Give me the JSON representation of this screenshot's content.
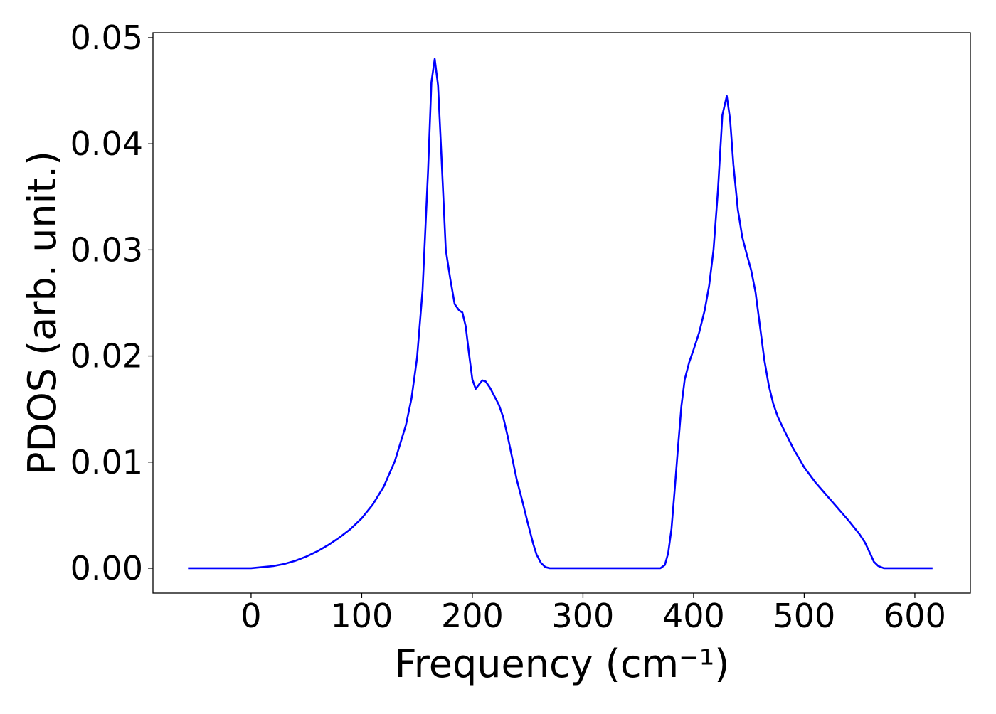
{
  "chart_data": {
    "type": "line",
    "xlabel": "Frequency (cm⁻¹)",
    "ylabel": "PDOS (arb. unit.)",
    "x": [
      -57,
      0,
      10,
      20,
      30,
      40,
      50,
      60,
      70,
      80,
      90,
      100,
      110,
      120,
      130,
      140,
      145,
      150,
      155,
      160,
      163,
      166,
      169,
      172,
      176,
      180,
      184,
      188,
      191,
      194,
      197,
      200,
      203,
      206,
      209,
      212,
      216,
      220,
      224,
      228,
      232,
      236,
      240,
      245,
      250,
      255,
      258,
      262,
      266,
      270,
      300,
      370,
      374,
      377,
      380,
      383,
      386,
      389,
      392,
      396,
      400,
      405,
      410,
      414,
      418,
      422,
      426,
      430,
      433,
      436,
      440,
      444,
      448,
      452,
      456,
      460,
      464,
      468,
      472,
      476,
      480,
      490,
      500,
      510,
      520,
      530,
      540,
      550,
      555,
      560,
      563,
      567,
      572,
      616
    ],
    "series": [
      {
        "color": "#0000ff",
        "values": [
          0,
          0,
          0.0001,
          0.0002,
          0.0004,
          0.0007,
          0.0011,
          0.0016,
          0.0022,
          0.0029,
          0.0037,
          0.0047,
          0.006,
          0.0077,
          0.0101,
          0.0135,
          0.016,
          0.0198,
          0.0262,
          0.0375,
          0.0458,
          0.048,
          0.0455,
          0.039,
          0.03,
          0.0273,
          0.0249,
          0.0243,
          0.0241,
          0.0228,
          0.0202,
          0.0178,
          0.0169,
          0.0173,
          0.0177,
          0.0176,
          0.017,
          0.0162,
          0.0154,
          0.0142,
          0.0124,
          0.0104,
          0.0084,
          0.0064,
          0.0043,
          0.0023,
          0.0013,
          0.0005,
          0.0001,
          0,
          0,
          0,
          0.0003,
          0.0014,
          0.0037,
          0.0075,
          0.0115,
          0.0153,
          0.0178,
          0.0194,
          0.0206,
          0.0222,
          0.0243,
          0.0266,
          0.03,
          0.0356,
          0.0427,
          0.0445,
          0.0423,
          0.038,
          0.0338,
          0.0312,
          0.0296,
          0.0281,
          0.026,
          0.0228,
          0.0196,
          0.0172,
          0.0155,
          0.0143,
          0.0134,
          0.0113,
          0.0095,
          0.0081,
          0.0069,
          0.0057,
          0.0045,
          0.0032,
          0.0024,
          0.0013,
          0.0006,
          0.0002,
          0,
          0
        ]
      }
    ],
    "xlim": [
      -88.7,
      650.2
    ],
    "ylim": [
      -0.00235,
      0.05047
    ],
    "xticks": [
      0,
      100,
      200,
      300,
      400,
      500,
      600
    ],
    "yticks": [
      {
        "value": 0,
        "label": "0.00"
      },
      {
        "value": 0.01,
        "label": "0.01"
      },
      {
        "value": 0.02,
        "label": "0.02"
      },
      {
        "value": 0.03,
        "label": "0.03"
      },
      {
        "value": 0.04,
        "label": "0.04"
      },
      {
        "value": 0.05,
        "label": "0.05"
      }
    ]
  }
}
